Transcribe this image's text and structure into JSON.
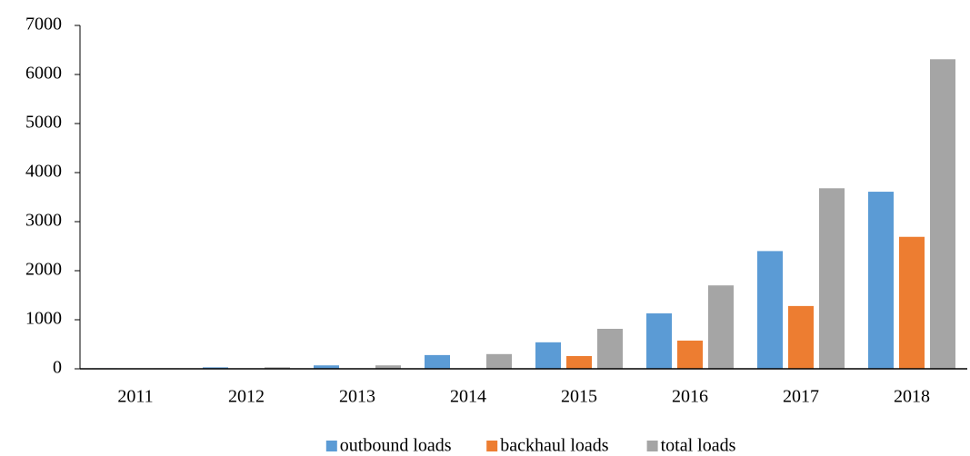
{
  "chart_data": {
    "type": "bar",
    "categories": [
      "2011",
      "2012",
      "2013",
      "2014",
      "2015",
      "2016",
      "2017",
      "2018"
    ],
    "series": [
      {
        "name": "outbound loads",
        "color": "#5b9bd5",
        "values": [
          10,
          30,
          70,
          280,
          540,
          1130,
          2400,
          3610
        ]
      },
      {
        "name": "backhaul loads",
        "color": "#ed7d31",
        "values": [
          0,
          0,
          0,
          0,
          260,
          575,
          1280,
          2690
        ]
      },
      {
        "name": "total loads",
        "color": "#a5a5a5",
        "values": [
          10,
          30,
          70,
          300,
          815,
          1700,
          3680,
          6310
        ]
      }
    ],
    "ylim": [
      0,
      7000
    ],
    "yticks": [
      0,
      1000,
      2000,
      3000,
      4000,
      5000,
      6000,
      7000
    ],
    "grid": false,
    "legend": "bottom"
  }
}
